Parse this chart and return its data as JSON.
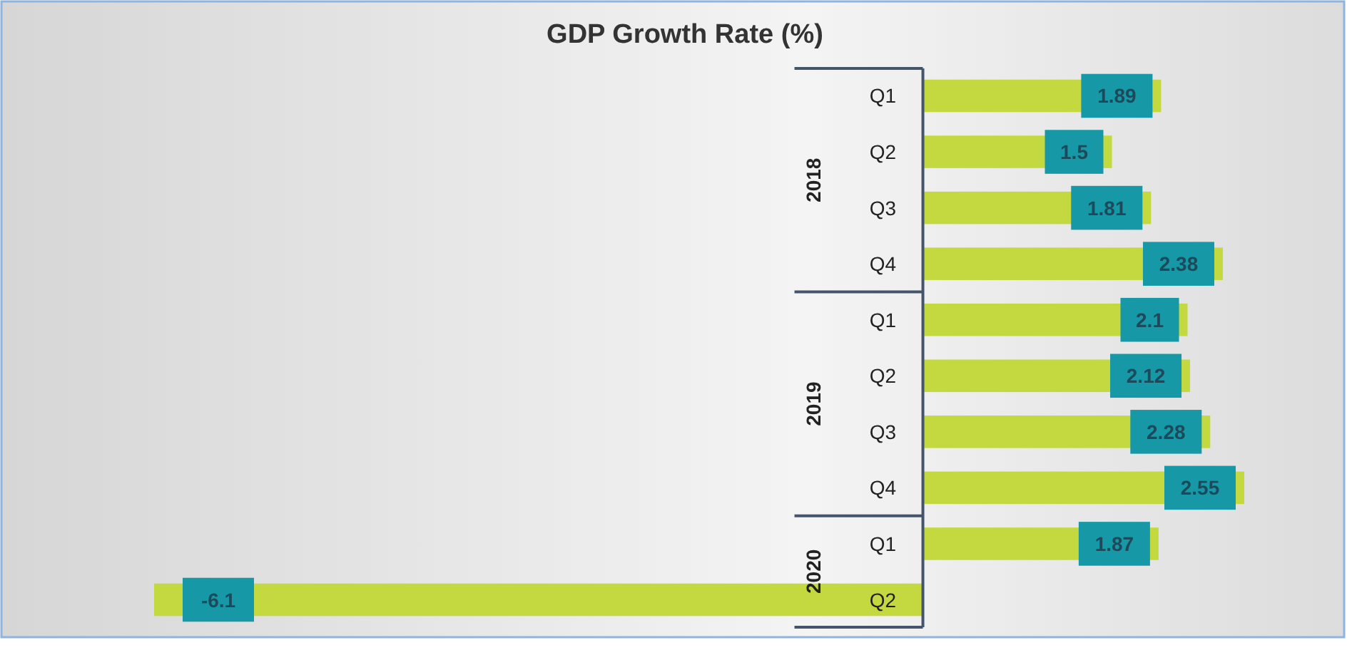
{
  "chart_data": {
    "type": "bar",
    "orientation": "horizontal",
    "title": "GDP Growth Rate (%)",
    "categories": [
      "Q1",
      "Q2",
      "Q3",
      "Q4",
      "Q1",
      "Q2",
      "Q3",
      "Q4",
      "Q1",
      "Q2"
    ],
    "values": [
      1.89,
      1.5,
      1.81,
      2.38,
      2.1,
      2.12,
      2.28,
      2.55,
      1.87,
      -6.1
    ],
    "color": "#c3d93f",
    "data_labels": true,
    "annotations": [
      "2018",
      "2019",
      "2020"
    ]
  }
}
